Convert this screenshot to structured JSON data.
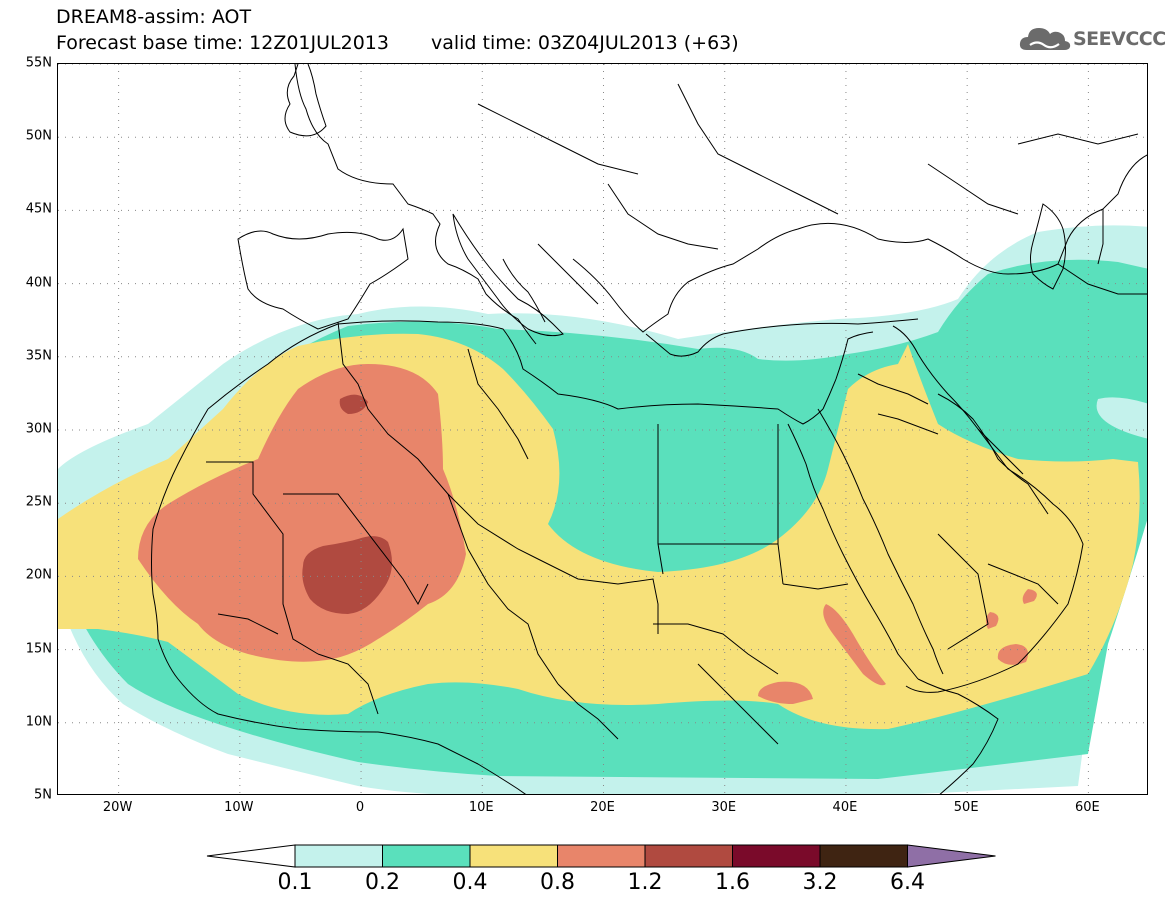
{
  "header": {
    "title_line1": "DREAM8-assim: AOT",
    "base_time": "Forecast base time: 12Z01JUL2013",
    "valid_time": "valid time: 03Z04JUL2013 (+63)",
    "logo_text": "SEEVCCC",
    "logo_icon": "cloud-icon"
  },
  "map": {
    "projection": "equirectangular",
    "lon_range": [
      -25,
      65
    ],
    "lat_range": [
      5,
      55
    ],
    "lat_labels": [
      "55N",
      "50N",
      "45N",
      "40N",
      "35N",
      "30N",
      "25N",
      "20N",
      "15N",
      "10N",
      "5N"
    ],
    "lon_labels": [
      "20W",
      "10W",
      "0",
      "10E",
      "20E",
      "30E",
      "40E",
      "50E",
      "60E"
    ],
    "gridlines": "dotted"
  },
  "colorbar": {
    "levels": [
      "0.1",
      "0.2",
      "0.4",
      "0.8",
      "1.2",
      "1.6",
      "3.2",
      "6.4"
    ],
    "colors": [
      "#c4f2ec",
      "#5ae0bc",
      "#f7e17a",
      "#e8856a",
      "#b04a40",
      "#7a0a2a",
      "#3f2412",
      "#8f6fa6"
    ],
    "extend": "both",
    "low_arrow_color": "#ffffff",
    "high_arrow_color": "#8f6fa6"
  }
}
